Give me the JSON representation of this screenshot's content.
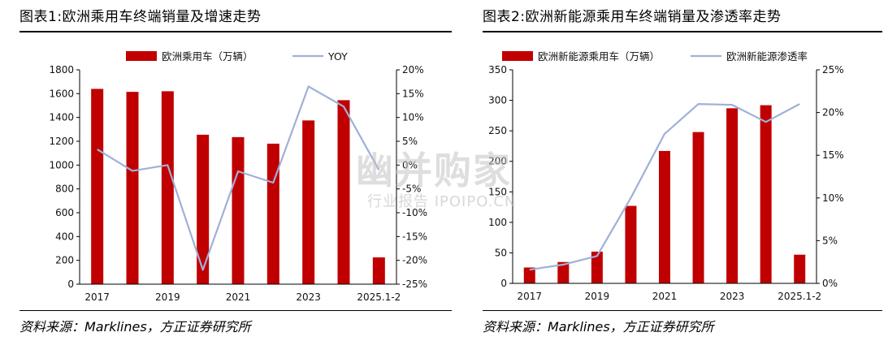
{
  "colors": {
    "bar": "#C00000",
    "line": "#9FB0D8",
    "axis": "#000000"
  },
  "watermark": {
    "main": "幽并购家",
    "sub": "行业报告 IPOIPO.CN"
  },
  "chart_data": [
    {
      "type": "bar",
      "title": "图表1:欧洲乘用车终端销量及增速走势",
      "source": "资料来源：Marklines，方正证券研究所",
      "categories": [
        "2017",
        "2018",
        "2019",
        "2020",
        "2021",
        "2022",
        "2023",
        "2024",
        "2025.1-2"
      ],
      "x_tick_labels": [
        "2017",
        "",
        "2019",
        "",
        "2021",
        "",
        "2023",
        "",
        "2025.1-2"
      ],
      "series": [
        {
          "name": "欧洲乘用车（万辆）",
          "type": "bar",
          "axis": "left",
          "values": [
            1640,
            1615,
            1620,
            1255,
            1235,
            1180,
            1375,
            1545,
            225
          ]
        },
        {
          "name": "YOY",
          "type": "line",
          "axis": "right",
          "values": [
            3.3,
            -1.2,
            0.0,
            -22.0,
            -1.3,
            -3.7,
            16.5,
            12.3,
            -1.0
          ]
        }
      ],
      "y_left": {
        "min": 0,
        "max": 1800,
        "step": 200
      },
      "y_left_ticks": [
        "0",
        "200",
        "400",
        "600",
        "800",
        "1000",
        "1200",
        "1400",
        "1600",
        "1800"
      ],
      "y_right": {
        "min": -25,
        "max": 20,
        "step": 5
      },
      "y_right_ticks": [
        "-25%",
        "-20%",
        "-15%",
        "-10%",
        "-5%",
        "0%",
        "5%",
        "10%",
        "15%",
        "20%"
      ],
      "legend_position": "top"
    },
    {
      "type": "bar",
      "title": "图表2:欧洲新能源乘用车终端销量及渗透率走势",
      "source": "资料来源：Marklines，方正证券研究所",
      "categories": [
        "2017",
        "2018",
        "2019",
        "2020",
        "2021",
        "2022",
        "2023",
        "2024",
        "2025.1-2"
      ],
      "x_tick_labels": [
        "2017",
        "",
        "2019",
        "",
        "2021",
        "",
        "2023",
        "",
        "2025.1-2"
      ],
      "series": [
        {
          "name": "欧洲新能源乘用车（万辆）",
          "type": "bar",
          "axis": "left",
          "values": [
            26,
            35,
            52,
            127,
            217,
            248,
            287,
            292,
            47
          ]
        },
        {
          "name": "欧洲新能源渗透率",
          "type": "line",
          "axis": "right",
          "values": [
            1.6,
            2.2,
            3.2,
            10.0,
            17.5,
            21.0,
            20.9,
            18.9,
            21.0
          ]
        }
      ],
      "y_left": {
        "min": 0,
        "max": 350,
        "step": 50
      },
      "y_left_ticks": [
        "0",
        "50",
        "100",
        "150",
        "200",
        "250",
        "300",
        "350"
      ],
      "y_right": {
        "min": 0,
        "max": 25,
        "step": 5
      },
      "y_right_ticks": [
        "0%",
        "5%",
        "10%",
        "15%",
        "20%",
        "25%"
      ],
      "legend_position": "top"
    }
  ]
}
